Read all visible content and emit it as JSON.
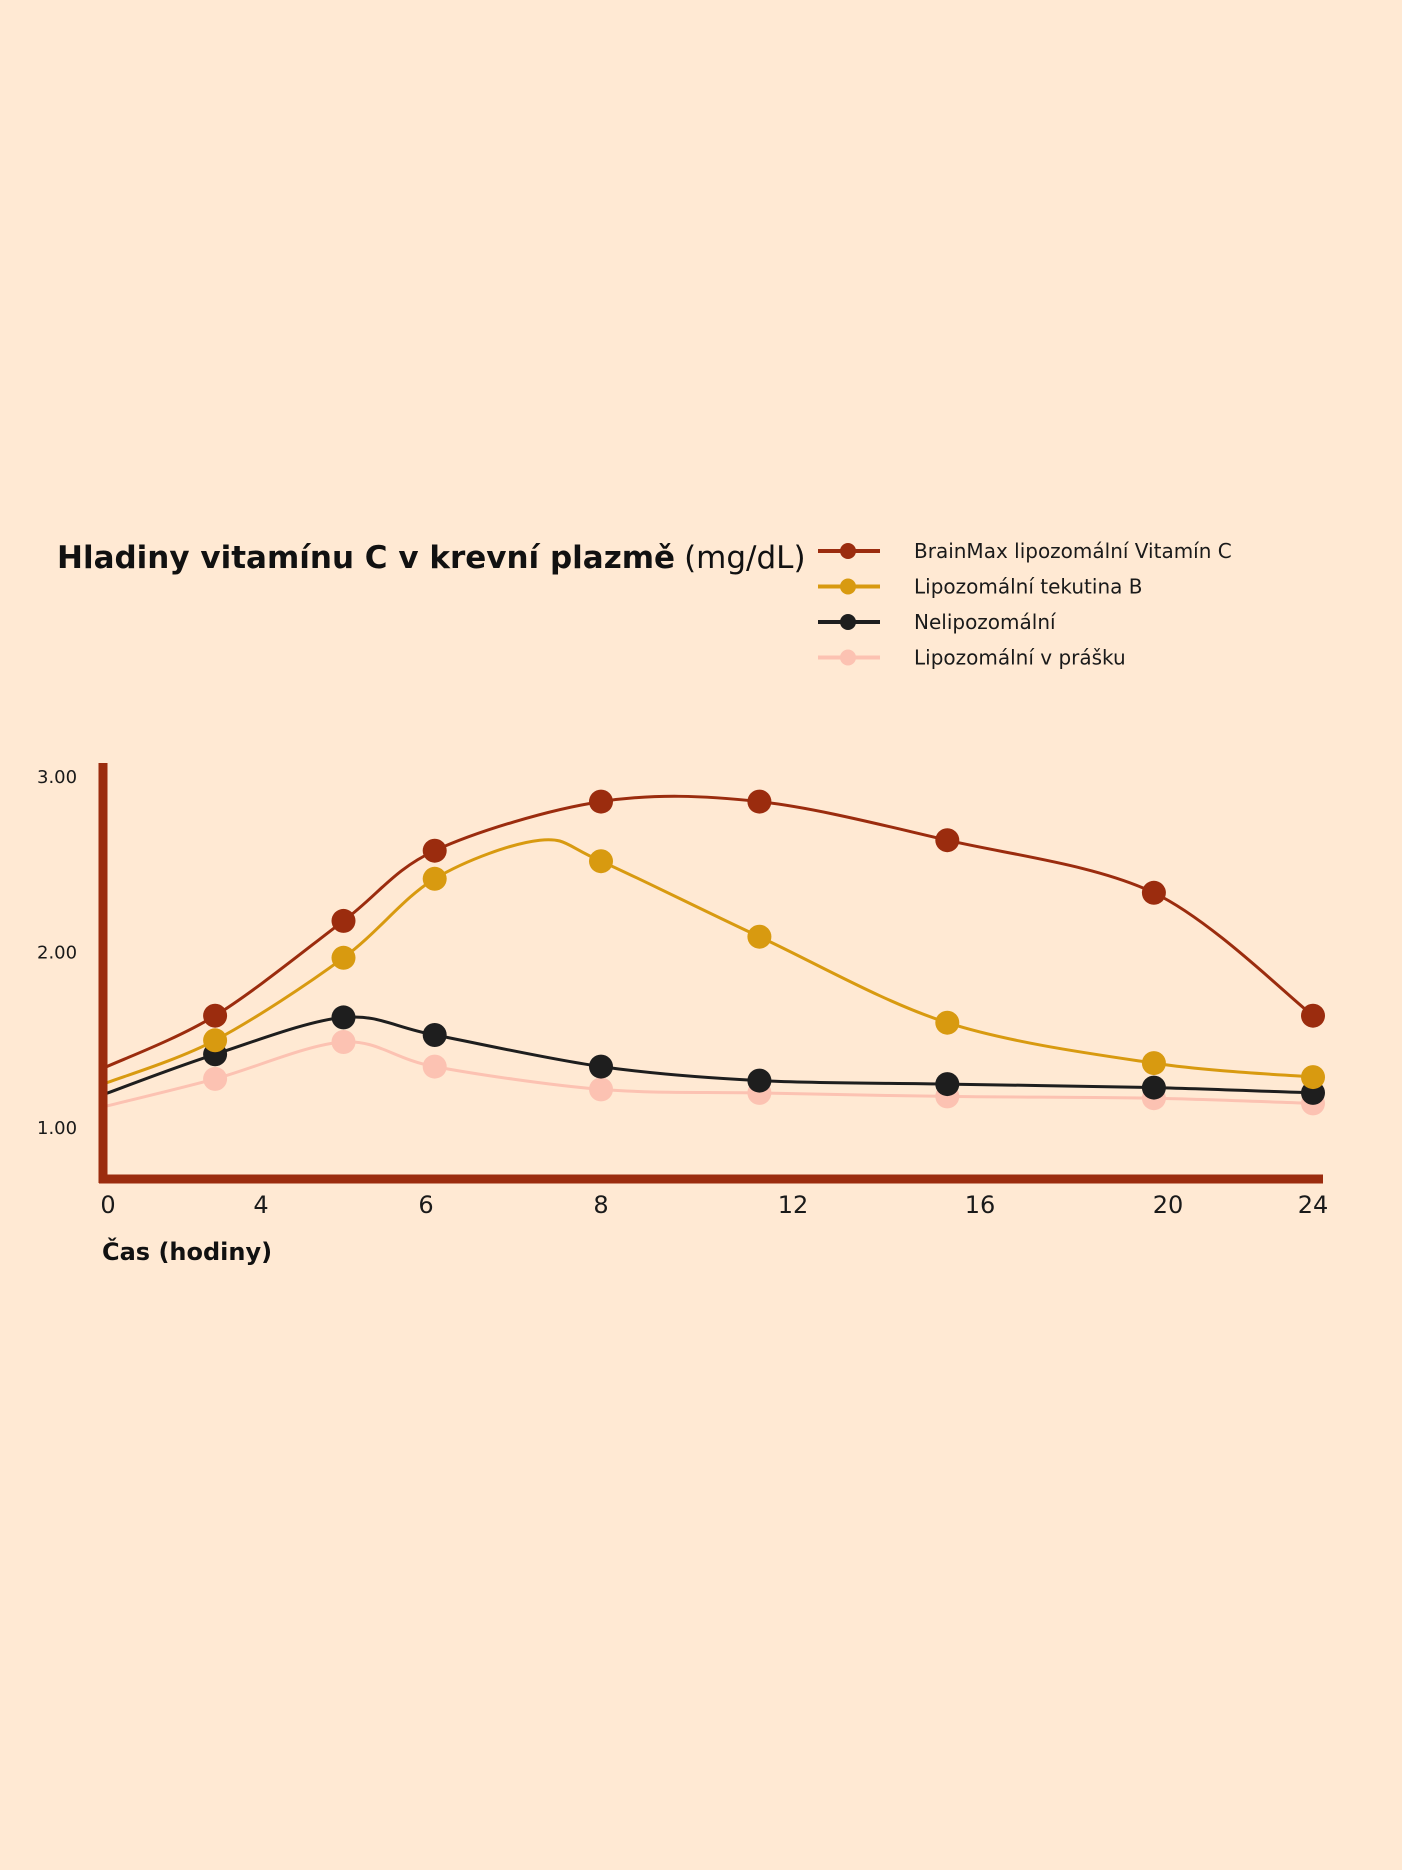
{
  "chart_data": {
    "type": "line",
    "title": "Hladiny vitamínu C v krevní plazmě",
    "title_unit": "(mg/dL)",
    "xlabel": "Čas (hodiny)",
    "ylabel": "",
    "x_tick_labels": [
      "0",
      "4",
      "6",
      "8",
      "12",
      "16",
      "20",
      "24"
    ],
    "y_tick_labels": [
      "1.00",
      "2.00",
      "3.00"
    ],
    "axis_color": "#9b2c0e",
    "legend_position": "top-right",
    "grid": false,
    "series": [
      {
        "name": "BrainMax lipozomální Vitamín C",
        "color": "#9b2c0e",
        "start_value": 1.34,
        "points": [
          {
            "x": 2.8,
            "y": 1.64
          },
          {
            "x": 5.0,
            "y": 2.18
          },
          {
            "x": 6.1,
            "y": 2.58
          },
          {
            "x": 8.0,
            "y": 2.86
          },
          {
            "x": 11.3,
            "y": 2.86
          },
          {
            "x": 15.3,
            "y": 2.64
          },
          {
            "x": 19.7,
            "y": 2.34
          },
          {
            "x": 24.0,
            "y": 1.64
          }
        ]
      },
      {
        "name": "Lipozomální tekutina B",
        "color": "#d89a10",
        "start_value": 1.25,
        "peak": {
          "x": 7.3,
          "y": 2.64
        },
        "points": [
          {
            "x": 2.8,
            "y": 1.5
          },
          {
            "x": 5.0,
            "y": 1.97
          },
          {
            "x": 6.1,
            "y": 2.42
          },
          {
            "x": 8.0,
            "y": 2.52
          },
          {
            "x": 11.3,
            "y": 2.09
          },
          {
            "x": 15.3,
            "y": 1.6
          },
          {
            "x": 19.7,
            "y": 1.37
          },
          {
            "x": 24.0,
            "y": 1.29
          }
        ]
      },
      {
        "name": "Nelipozomální",
        "color": "#1e1e1e",
        "start_value": 1.19,
        "points": [
          {
            "x": 2.8,
            "y": 1.42
          },
          {
            "x": 5.0,
            "y": 1.63
          },
          {
            "x": 6.1,
            "y": 1.53
          },
          {
            "x": 8.0,
            "y": 1.35
          },
          {
            "x": 11.3,
            "y": 1.27
          },
          {
            "x": 15.3,
            "y": 1.25
          },
          {
            "x": 19.7,
            "y": 1.23
          },
          {
            "x": 24.0,
            "y": 1.2
          }
        ]
      },
      {
        "name": "Lipozomální v prášku",
        "color": "#fcc2b2",
        "start_value": 1.12,
        "points": [
          {
            "x": 2.8,
            "y": 1.28
          },
          {
            "x": 5.0,
            "y": 1.49
          },
          {
            "x": 6.1,
            "y": 1.35
          },
          {
            "x": 8.0,
            "y": 1.22
          },
          {
            "x": 11.3,
            "y": 1.2
          },
          {
            "x": 15.3,
            "y": 1.18
          },
          {
            "x": 19.7,
            "y": 1.17
          },
          {
            "x": 24.0,
            "y": 1.14
          }
        ]
      }
    ]
  }
}
